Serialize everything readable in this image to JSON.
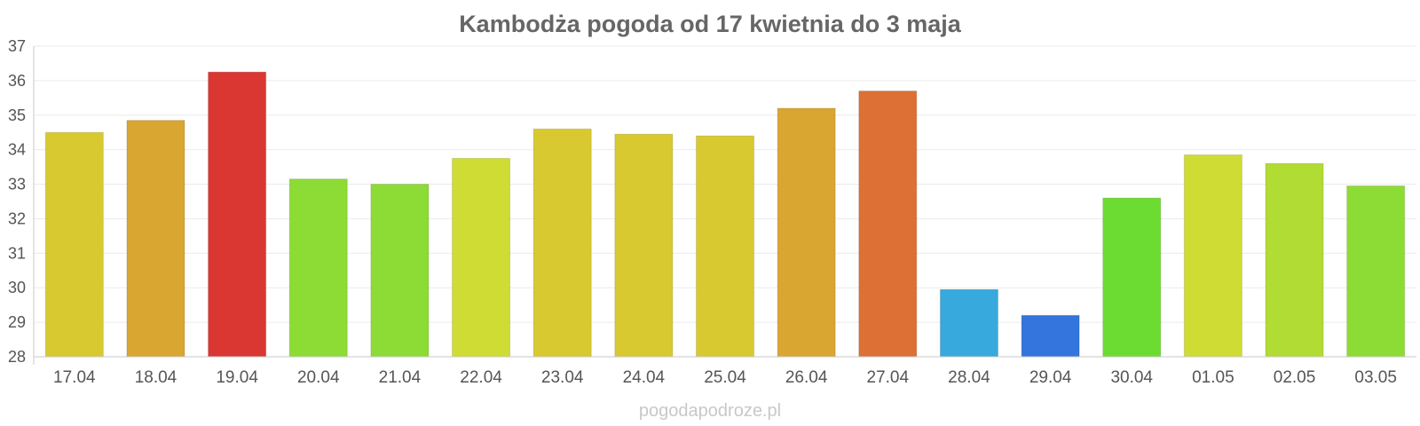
{
  "chart_data": {
    "type": "bar",
    "title": "Kambodża pogoda od 17 kwietnia do 3 maja",
    "xlabel": "",
    "ylabel": "",
    "ylim": [
      28,
      37
    ],
    "yticks": [
      "28",
      "29",
      "30",
      "31",
      "32",
      "33",
      "34",
      "35",
      "36",
      "37"
    ],
    "grid": true,
    "categories": [
      "17.04",
      "18.04",
      "19.04",
      "20.04",
      "21.04",
      "22.04",
      "23.04",
      "24.04",
      "25.04",
      "26.04",
      "27.04",
      "28.04",
      "29.04",
      "30.04",
      "01.05",
      "02.05",
      "03.05"
    ],
    "values": [
      34.5,
      34.85,
      36.25,
      33.15,
      33.0,
      33.75,
      34.6,
      34.45,
      34.4,
      35.2,
      35.7,
      29.95,
      29.2,
      32.6,
      33.85,
      33.6,
      32.95
    ],
    "colors": [
      "#d9c930",
      "#daa632",
      "#da3733",
      "#8cdc35",
      "#8cdc35",
      "#cfdc33",
      "#d9c930",
      "#d9c930",
      "#d9c930",
      "#daa632",
      "#dc7035",
      "#37a9dc",
      "#3375dc",
      "#6ddc32",
      "#cfdc33",
      "#b0dc33",
      "#8cdc35"
    ]
  },
  "watermark": "pogodapodroze.pl"
}
